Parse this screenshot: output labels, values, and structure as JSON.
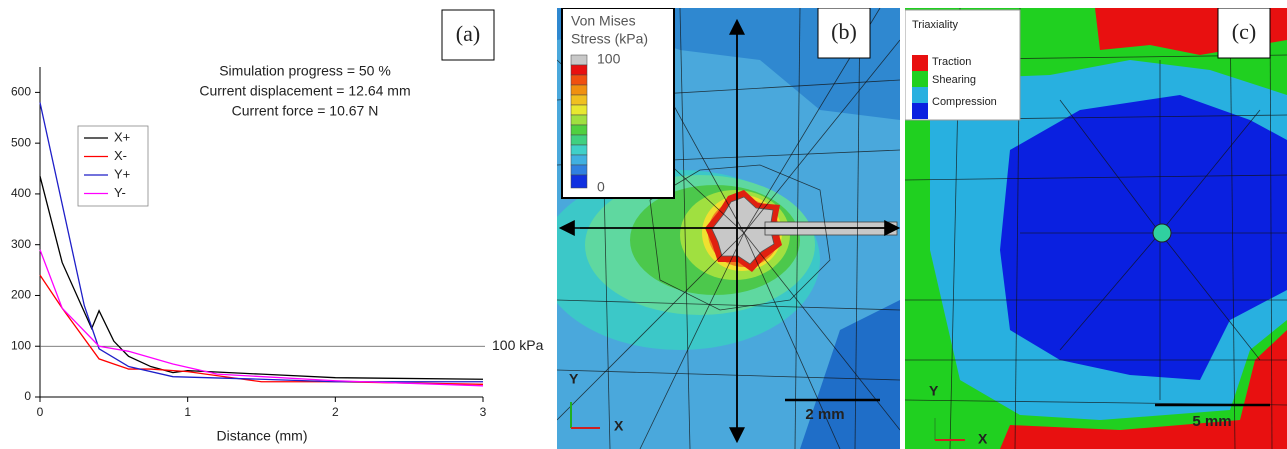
{
  "chart_data": {
    "type": "line",
    "panel_label": "(a)",
    "annotations": [
      "Simulation progress = 50 %",
      "Current displacement = 12.64 mm",
      "Current force = 10.67 N"
    ],
    "x_label": "Distance (mm)",
    "xlim": [
      0,
      3
    ],
    "xticks": [
      0,
      1,
      2,
      3
    ],
    "ylim": [
      0,
      650
    ],
    "yticks": [
      0,
      100,
      200,
      300,
      400,
      500,
      600
    ],
    "reference_line": {
      "value": 100,
      "label": "100 kPa"
    },
    "legend": "upper-left",
    "series": [
      {
        "name": "X+",
        "color": "#000000",
        "x": [
          0,
          0.15,
          0.35,
          0.4,
          0.5,
          0.6,
          0.75,
          0.9,
          1.0,
          1.5,
          2.0,
          3.0
        ],
        "values": [
          435,
          265,
          135,
          170,
          110,
          80,
          60,
          48,
          52,
          45,
          38,
          35
        ]
      },
      {
        "name": "X-",
        "color": "#ff0000",
        "x": [
          0,
          0.15,
          0.4,
          0.5,
          0.6,
          0.75,
          1.0,
          1.5,
          2.0,
          3.0
        ],
        "values": [
          240,
          175,
          75,
          65,
          55,
          55,
          50,
          30,
          30,
          25
        ]
      },
      {
        "name": "Y+",
        "color": "#1f1fc8",
        "x": [
          0,
          0.3,
          0.4,
          0.6,
          0.9,
          1.5,
          2.0,
          3.0
        ],
        "values": [
          580,
          180,
          95,
          60,
          40,
          35,
          30,
          30
        ]
      },
      {
        "name": "Y-",
        "color": "#ff00ff",
        "x": [
          0,
          0.15,
          0.4,
          0.6,
          0.9,
          1.2,
          2.0,
          3.0
        ],
        "values": [
          290,
          175,
          100,
          90,
          65,
          45,
          32,
          22
        ]
      }
    ]
  },
  "panel_b": {
    "label": "(b)",
    "legend_title_1": "Von Mises",
    "legend_title_2": "Stress (kPa)",
    "legend_max": 100,
    "legend_min": 0,
    "scale_bar": "2 mm",
    "axis_y": "Y",
    "axis_x": "X"
  },
  "panel_c": {
    "label": "(c)",
    "legend_title": "Triaxiality",
    "legend_items": [
      "Traction",
      "Shearing",
      "Compression"
    ],
    "scale_bar": "5 mm",
    "axis_y": "Y",
    "axis_x": "X"
  }
}
